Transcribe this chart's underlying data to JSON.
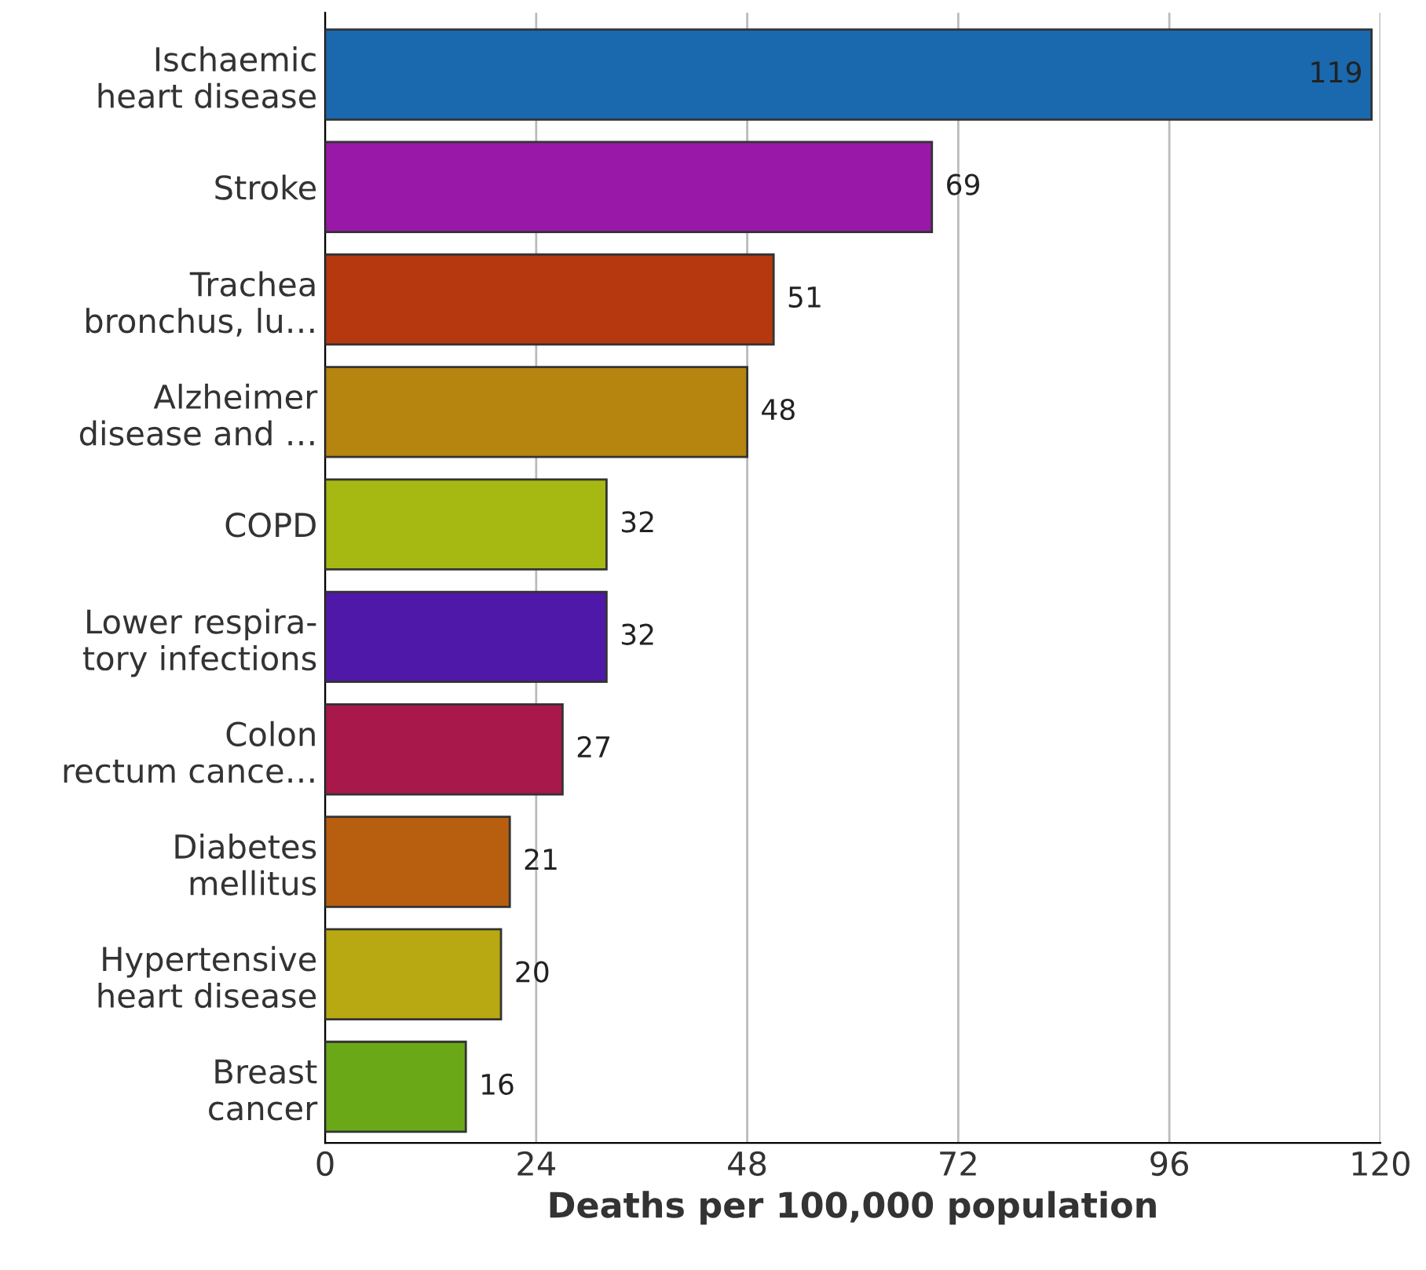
{
  "chart_data": {
    "type": "bar",
    "orientation": "horizontal",
    "xlabel": "Deaths per 100,000 population",
    "categories": [
      "Ischaemic\nheart disease",
      "Stroke",
      "Trachea\nbronchus, lu…",
      "Alzheimer\ndisease and …",
      "COPD",
      "Lower respira-\ntory infections",
      "Colon\nrectum cance…",
      "Diabetes\nmellitus",
      "Hypertensive\nheart disease",
      "Breast\ncancer"
    ],
    "values": [
      119,
      69,
      51,
      48,
      32,
      32,
      27,
      21,
      20,
      16
    ],
    "colors": [
      "#1a68ad",
      "#9a18a8",
      "#b5380f",
      "#b5850f",
      "#a6b812",
      "#4f18a8",
      "#a8184a",
      "#b85e0f",
      "#b8a812",
      "#6aa818"
    ],
    "xlim": [
      0,
      120
    ],
    "xticks": [
      0,
      24,
      48,
      72,
      96,
      120
    ],
    "grid": "x",
    "data_labels": true
  }
}
